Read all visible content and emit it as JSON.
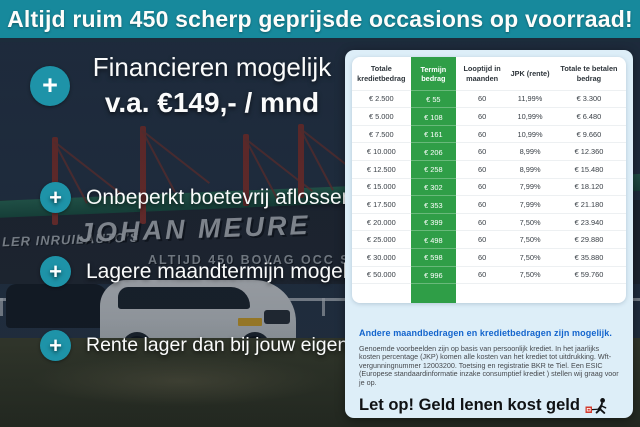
{
  "banner": {
    "text": "Altijd ruim 450 scherp geprijsde occasions op voorraad!"
  },
  "hero": {
    "title": "Financieren mogelijk",
    "subtitle": "v.a. €149,- / mnd"
  },
  "usp_items": [
    {
      "label": "Onbeperkt boetevrij aflossen"
    },
    {
      "label": "Lagere maandtermijn mogelijk"
    },
    {
      "label": "Rente lager dan bij jouw eigen bank"
    }
  ],
  "plus_glyph": "+",
  "photo": {
    "sign_left": "LER INRUILAUTO'S",
    "sign_main": "JOHAN MEURE",
    "sign_sub": "ALTIJD 450  BOVAG  OCC  SIONS"
  },
  "table": {
    "headers": [
      "Totale kredietbedrag",
      "Termijn bedrag",
      "Looptijd in maanden",
      "JPK (rente)",
      "Totale te betalen bedrag"
    ],
    "rows": [
      [
        "€ 2.500",
        "€ 55",
        "60",
        "11,99%",
        "€ 3.300"
      ],
      [
        "€ 5.000",
        "€ 108",
        "60",
        "10,99%",
        "€ 6.480"
      ],
      [
        "€ 7.500",
        "€ 161",
        "60",
        "10,99%",
        "€ 9.660"
      ],
      [
        "€ 10.000",
        "€ 206",
        "60",
        "8,99%",
        "€ 12.360"
      ],
      [
        "€ 12.500",
        "€ 258",
        "60",
        "8,99%",
        "€ 15.480"
      ],
      [
        "€ 15.000",
        "€ 302",
        "60",
        "7,99%",
        "€ 18.120"
      ],
      [
        "€ 17.500",
        "€ 353",
        "60",
        "7,99%",
        "€ 21.180"
      ],
      [
        "€ 20.000",
        "€ 399",
        "60",
        "7,50%",
        "€ 23.940"
      ],
      [
        "€ 25.000",
        "€ 498",
        "60",
        "7,50%",
        "€ 29.880"
      ],
      [
        "€ 30.000",
        "€ 598",
        "60",
        "7,50%",
        "€ 35.880"
      ],
      [
        "€ 50.000",
        "€ 996",
        "60",
        "7,50%",
        "€ 59.760"
      ]
    ]
  },
  "disclaimer": {
    "heading": "Andere maandbedragen en kredietbedragen zijn mogelijk.",
    "body": "Genoemde voorbeelden zijn op basis van persoonlijk krediet. In het jaarlijks kosten percentage (JKP) komen alle kosten van het krediet tot uitdrukking. Wft-vergunningnummer 12003200. Toetsing en registratie BKR te Tiel. Een ESIC (Europese standaardinformatie inzake consumptief krediet ) stellen wij graag voor je op.",
    "warning": "Let op! Geld lenen kost geld"
  },
  "colors": {
    "banner_teal": "#17899c",
    "accent_teal": "#1e93a8",
    "highlight_green": "#2f9e47",
    "card_bg": "#ddeef8",
    "heading_blue": "#1465cd",
    "warning_red": "#d23a2e"
  }
}
